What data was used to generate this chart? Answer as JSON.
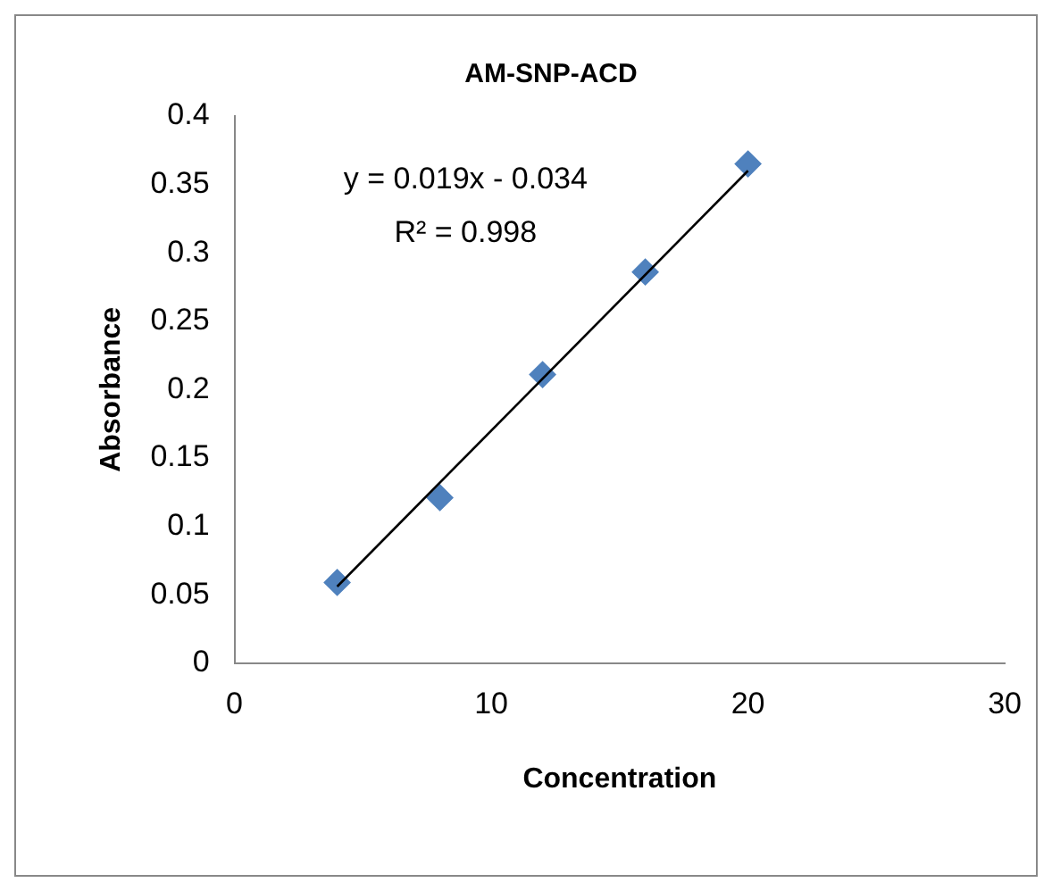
{
  "chart_data": {
    "type": "scatter",
    "title": "AM-SNP-ACD",
    "xlabel": "Concentration",
    "ylabel": "Absorbance",
    "annotations": [
      "y = 0.019x - 0.034",
      "R² = 0.998"
    ],
    "series": [
      {
        "type": "scatter",
        "color": "#4f81bd",
        "x": [
          4,
          8,
          12,
          16,
          20
        ],
        "values": [
          0.059,
          0.121,
          0.211,
          0.286,
          0.365
        ]
      },
      {
        "type": "line",
        "color": "#000000",
        "x": [
          4,
          20
        ],
        "values": [
          0.056,
          0.36
        ],
        "marker": "none"
      }
    ],
    "marker": "diamond",
    "xlim": [
      0,
      30
    ],
    "xticks": [
      0,
      10,
      20,
      30
    ],
    "ylim": [
      0,
      0.4
    ],
    "yticks": [
      0,
      0.05,
      0.1,
      0.15,
      0.2,
      0.25,
      0.3,
      0.35,
      0.4
    ],
    "grid": false,
    "legend": false
  }
}
